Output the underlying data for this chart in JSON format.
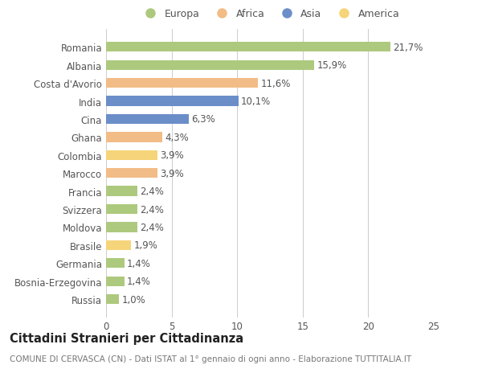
{
  "countries": [
    "Romania",
    "Albania",
    "Costa d'Avorio",
    "India",
    "Cina",
    "Ghana",
    "Colombia",
    "Marocco",
    "Francia",
    "Svizzera",
    "Moldova",
    "Brasile",
    "Germania",
    "Bosnia-Erzegovina",
    "Russia"
  ],
  "values": [
    21.7,
    15.9,
    11.6,
    10.1,
    6.3,
    4.3,
    3.9,
    3.9,
    2.4,
    2.4,
    2.4,
    1.9,
    1.4,
    1.4,
    1.0
  ],
  "labels": [
    "21,7%",
    "15,9%",
    "11,6%",
    "10,1%",
    "6,3%",
    "4,3%",
    "3,9%",
    "3,9%",
    "2,4%",
    "2,4%",
    "2,4%",
    "1,9%",
    "1,4%",
    "1,4%",
    "1,0%"
  ],
  "continents": [
    "Europa",
    "Europa",
    "Africa",
    "Asia",
    "Asia",
    "Africa",
    "America",
    "Africa",
    "Europa",
    "Europa",
    "Europa",
    "America",
    "Europa",
    "Europa",
    "Europa"
  ],
  "colors": {
    "Europa": "#adc97e",
    "Africa": "#f2bc87",
    "Asia": "#6b8ec9",
    "America": "#f5d47a"
  },
  "xlim": [
    0,
    25
  ],
  "xticks": [
    0,
    5,
    10,
    15,
    20,
    25
  ],
  "title": "Cittadini Stranieri per Cittadinanza",
  "subtitle": "COMUNE DI CERVASCA (CN) - Dati ISTAT al 1° gennaio di ogni anno - Elaborazione TUTTITALIA.IT",
  "bar_height": 0.55,
  "background_color": "#ffffff",
  "grid_color": "#cccccc",
  "text_color": "#555555",
  "label_fontsize": 8.5,
  "tick_fontsize": 8.5,
  "title_fontsize": 10.5,
  "subtitle_fontsize": 7.5,
  "legend_order": [
    "Europa",
    "Africa",
    "Asia",
    "America"
  ]
}
